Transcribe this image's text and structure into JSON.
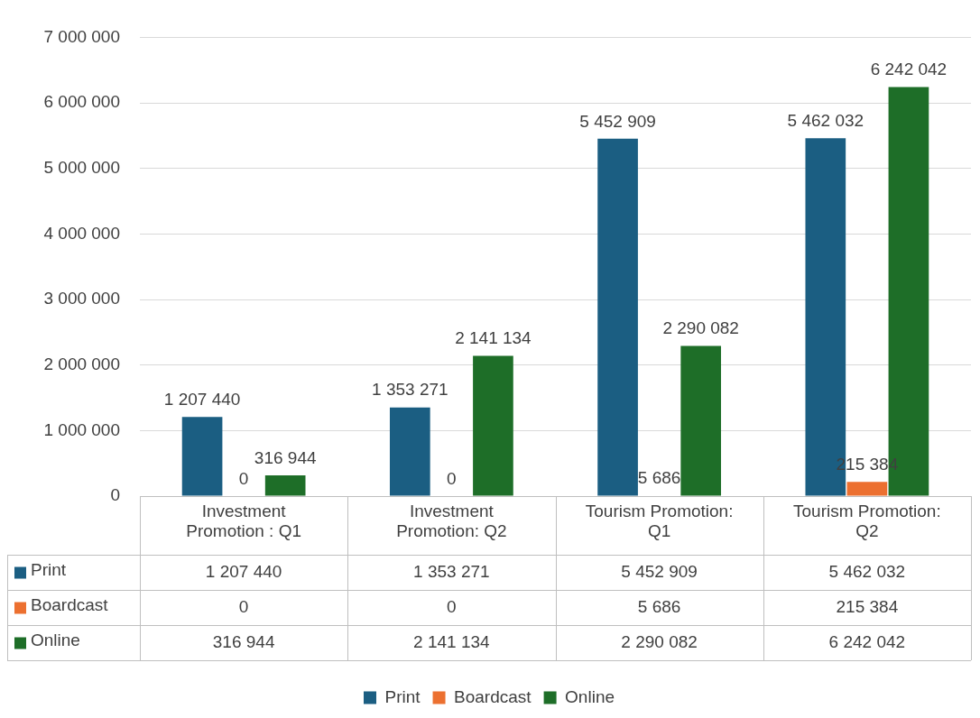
{
  "chart_data": {
    "type": "bar",
    "categories": [
      "Investment Promotion : Q1",
      "Investment Promotion: Q2",
      "Tourism Promotion: Q1",
      "Tourism Promotion: Q2"
    ],
    "series": [
      {
        "name": "Print",
        "color": "#1b5e82",
        "values": [
          1207440,
          1353271,
          5452909,
          5462032
        ],
        "value_labels": [
          "1 207 440",
          "1 353 271",
          "5 452 909",
          "5 462 032"
        ]
      },
      {
        "name": "Boardcast",
        "color": "#ec7030",
        "values": [
          0,
          0,
          5686,
          215384
        ],
        "value_labels": [
          "0",
          "0",
          "5 686",
          "215 384"
        ]
      },
      {
        "name": "Online",
        "color": "#1e6e28",
        "values": [
          316944,
          2141134,
          2290082,
          6242042
        ],
        "value_labels": [
          "316 944",
          "2 141 134",
          "2 290 082",
          "6 242 042"
        ]
      }
    ],
    "ylim": [
      0,
      7000000
    ],
    "yticks": [
      {
        "value": 0,
        "label": "0"
      },
      {
        "value": 1000000,
        "label": "1 000 000"
      },
      {
        "value": 2000000,
        "label": "2 000 000"
      },
      {
        "value": 3000000,
        "label": "3 000 000"
      },
      {
        "value": 4000000,
        "label": "4 000 000"
      },
      {
        "value": 5000000,
        "label": "5 000 000"
      },
      {
        "value": 6000000,
        "label": "6 000 000"
      },
      {
        "value": 7000000,
        "label": "7 000 000"
      }
    ],
    "grid": "y",
    "legend": "bottom"
  }
}
